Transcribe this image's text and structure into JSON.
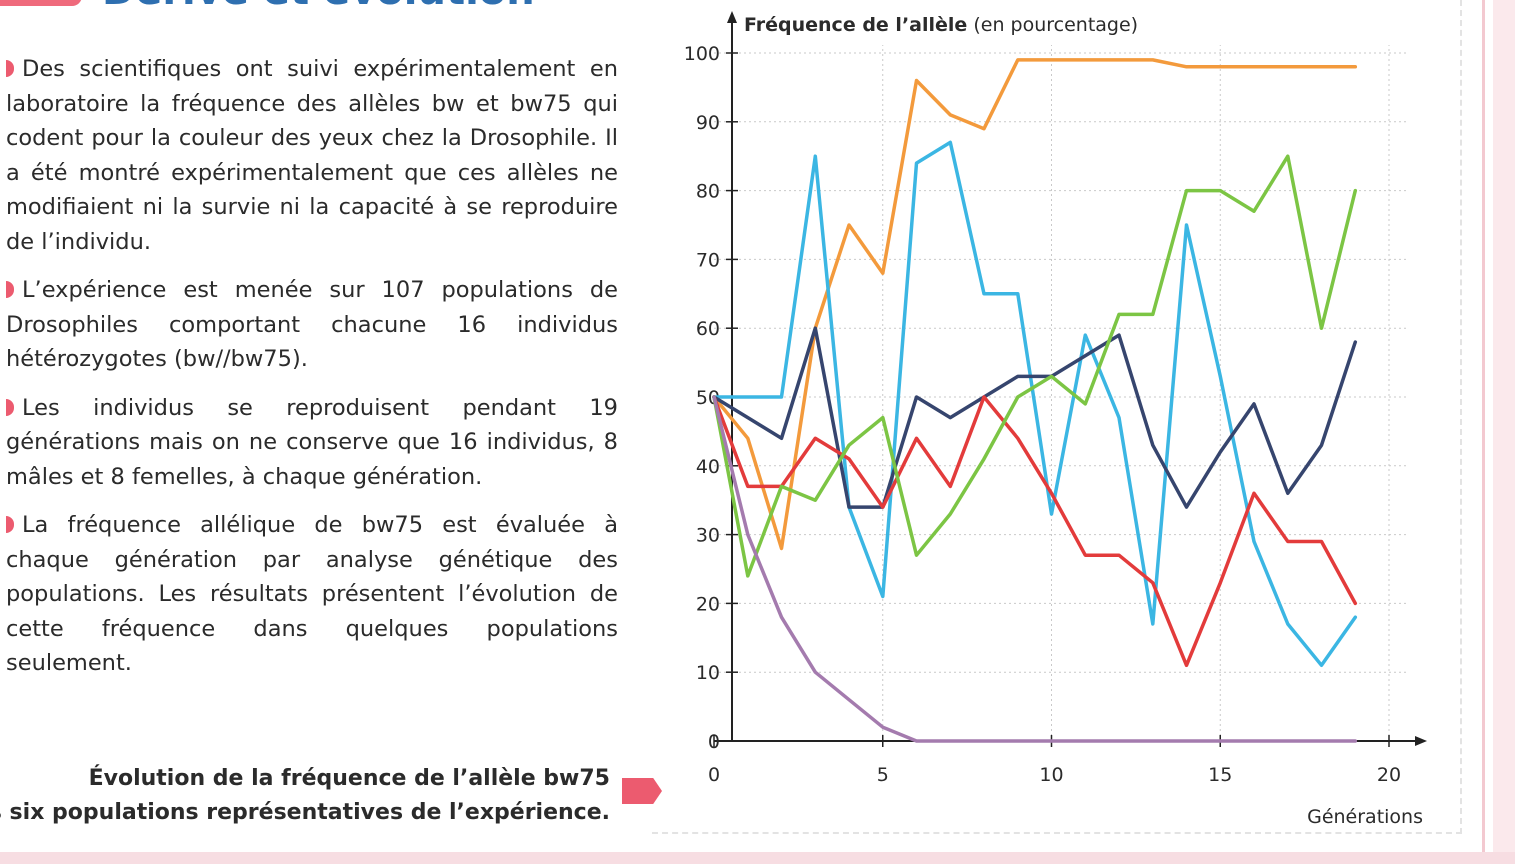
{
  "heading": "Dérive et évolution",
  "paragraphs": [
    "Des scientifiques ont suivi expérimentalement en laboratoire la fréquence des allèles bw et bw75 qui codent pour la couleur des yeux chez la Drosophile. Il a été montré expérimentalement que ces allèles ne modifiaient ni la survie ni la capacité à se reproduire de l’individu.",
    "L’expérience est menée sur 107 populations de Drosophiles comportant chacune 16 individus hétérozygotes (bw//bw75).",
    "Les individus se reproduisent pendant 19 générations mais on ne conserve que 16 individus, 8 mâles et 8 femelles, à chaque génération.",
    "La fréquence allélique de bw75 est évaluée à chaque génération par analyse génétique des populations. Les résultats présentent l’évolution de cette fréquence dans quelques populations seulement."
  ],
  "caption": {
    "line1": "Évolution de la fréquence de l’allèle bw75",
    "line2": "dans six populations représentatives de l’expérience."
  },
  "colors": {
    "accent": "#ec5b6f",
    "axis": "#222222",
    "grid": "#c9c9c9"
  },
  "chart_data": {
    "type": "line",
    "ylabel": "Fréquence de l’allèle",
    "ylabel_unit": "(en pourcentage)",
    "xlabel": "Générations",
    "xlim": [
      0,
      21
    ],
    "ylim": [
      0,
      100
    ],
    "xticks": [
      0,
      5,
      10,
      15,
      20
    ],
    "yticks": [
      0,
      10,
      20,
      30,
      40,
      50,
      60,
      70,
      80,
      90,
      100
    ],
    "grid": true,
    "x": [
      0,
      1,
      2,
      3,
      4,
      5,
      6,
      7,
      8,
      9,
      10,
      11,
      12,
      13,
      14,
      15,
      16,
      17,
      18,
      19
    ],
    "series": [
      {
        "color": "#f39a3c",
        "values": [
          50,
          44,
          28,
          60,
          75,
          68,
          96,
          91,
          89,
          99,
          99,
          99,
          99,
          99,
          98,
          98,
          98,
          98,
          98,
          98
        ]
      },
      {
        "color": "#3bb6e3",
        "values": [
          50,
          50,
          50,
          85,
          34,
          21,
          84,
          87,
          65,
          65,
          33,
          59,
          47,
          17,
          75,
          53,
          29,
          17,
          11,
          18
        ]
      },
      {
        "color": "#36456e",
        "values": [
          50,
          47,
          44,
          60,
          34,
          34,
          50,
          47,
          50,
          53,
          53,
          56,
          59,
          43,
          34,
          42,
          49,
          36,
          43,
          58
        ]
      },
      {
        "color": "#e33b3b",
        "values": [
          50,
          37,
          37,
          44,
          41,
          34,
          44,
          37,
          50,
          44,
          36,
          27,
          27,
          23,
          11,
          23,
          36,
          29,
          29,
          20
        ]
      },
      {
        "color": "#7cc544",
        "values": [
          50,
          24,
          37,
          35,
          43,
          47,
          27,
          33,
          41,
          50,
          53,
          49,
          62,
          62,
          80,
          80,
          77,
          85,
          60,
          80
        ]
      },
      {
        "color": "#a47bae",
        "values": [
          50,
          30,
          18,
          10,
          6,
          2,
          0,
          0,
          0,
          0,
          0,
          0,
          0,
          0,
          0,
          0,
          0,
          0,
          0,
          0
        ]
      }
    ]
  }
}
